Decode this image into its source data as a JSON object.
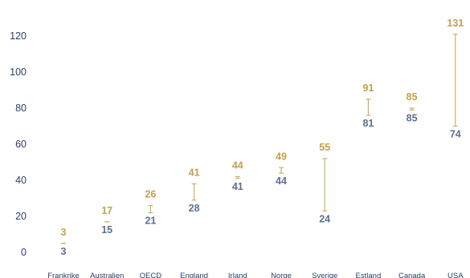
{
  "chart_data": {
    "type": "range",
    "y_ticks": [
      0,
      20,
      40,
      60,
      80,
      100,
      120
    ],
    "ylim": [
      0,
      131
    ],
    "grid": false,
    "legend": "none",
    "colors": {
      "upper": "#c4a04a",
      "lower": "#5b7191",
      "line": "#cdb16a"
    },
    "categories": [
      "Frankrike",
      "Australien",
      "OECD",
      "England",
      "Irland",
      "Norge",
      "Sverige",
      "Estland",
      "Canada",
      "USA"
    ],
    "points": [
      {
        "category": "Frankrike",
        "low": 3,
        "high": 3
      },
      {
        "category": "Australien",
        "low": 15,
        "high": 17
      },
      {
        "category": "OECD",
        "low": 21,
        "high": 26
      },
      {
        "category": "England",
        "low": 28,
        "high": 41
      },
      {
        "category": "Irland",
        "low": 41,
        "high": 44
      },
      {
        "category": "Norge",
        "low": 44,
        "high": 49
      },
      {
        "category": "Sverige",
        "low": 24,
        "high": 55
      },
      {
        "category": "Estland",
        "low": 81,
        "high": 91
      },
      {
        "category": "Canada",
        "low": 85,
        "high": 85
      },
      {
        "category": "USA",
        "low": 74,
        "high": 131
      }
    ],
    "drawn_bars": [
      {
        "category": "Frankrike",
        "top": 5,
        "bottom": 5
      },
      {
        "category": "Australien",
        "top": 17,
        "bottom": 17
      },
      {
        "category": "OECD",
        "top": 26,
        "bottom": 22
      },
      {
        "category": "England",
        "top": 38,
        "bottom": 29
      },
      {
        "category": "Irland",
        "top": 42,
        "bottom": 41
      },
      {
        "category": "Norge",
        "top": 47,
        "bottom": 44
      },
      {
        "category": "Sverige",
        "top": 52,
        "bottom": 23
      },
      {
        "category": "Estland",
        "top": 85,
        "bottom": 76
      },
      {
        "category": "Canada",
        "top": 80,
        "bottom": 79
      },
      {
        "category": "USA",
        "top": 121,
        "bottom": 70
      }
    ]
  }
}
